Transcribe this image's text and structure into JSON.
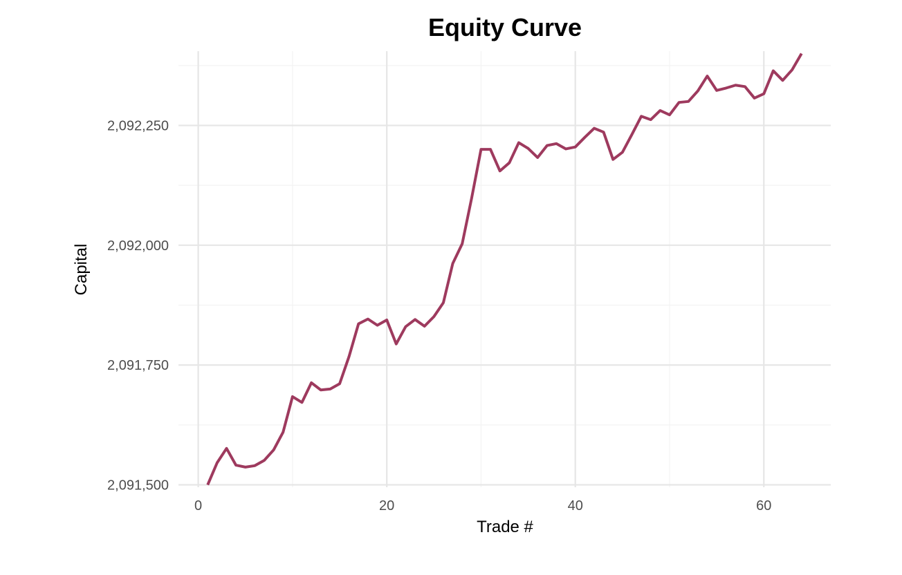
{
  "chart_data": {
    "type": "line",
    "title": "Equity Curve",
    "xlabel": "Trade #",
    "ylabel": "Capital",
    "xlim": [
      -2.1,
      67.1
    ],
    "ylim": [
      2091495,
      2092405
    ],
    "x_ticks": [
      0,
      20,
      40,
      60
    ],
    "x_tick_labels": [
      "0",
      "20",
      "40",
      "60"
    ],
    "x_minor_ticks": [
      10,
      30,
      50
    ],
    "y_ticks": [
      2091500,
      2091750,
      2092000,
      2092250
    ],
    "y_tick_labels": [
      "2,091,500",
      "2,091,750",
      "2,092,000",
      "2,092,250"
    ],
    "y_minor_ticks": [
      2091625,
      2091875,
      2092125,
      2092375
    ],
    "grid": true,
    "legend": "none",
    "series": [
      {
        "color": "#9e3a5e",
        "x": [
          1,
          2,
          3,
          4,
          5,
          6,
          7,
          8,
          9,
          10,
          11,
          12,
          13,
          14,
          15,
          16,
          17,
          18,
          19,
          20,
          21,
          22,
          23,
          24,
          25,
          26,
          27,
          28,
          29,
          30,
          31,
          32,
          33,
          34,
          35,
          36,
          37,
          38,
          39,
          40,
          41,
          42,
          43,
          44,
          45,
          46,
          47,
          48,
          49,
          50,
          51,
          52,
          53,
          54,
          55,
          56,
          57,
          58,
          59,
          60,
          61,
          62,
          63,
          64
        ],
        "values": [
          2091500,
          2091546,
          2091576,
          2091541,
          2091537,
          2091540,
          2091551,
          2091573,
          2091610,
          2091684,
          2091672,
          2091713,
          2091698,
          2091700,
          2091711,
          2091768,
          2091836,
          2091846,
          2091833,
          2091844,
          2091794,
          2091830,
          2091845,
          2091831,
          2091851,
          2091880,
          2091962,
          2092003,
          2092098,
          2092200,
          2092200,
          2092155,
          2092172,
          2092214,
          2092202,
          2092183,
          2092208,
          2092212,
          2092201,
          2092205,
          2092225,
          2092244,
          2092236,
          2092179,
          2092194,
          2092231,
          2092269,
          2092262,
          2092281,
          2092272,
          2092298,
          2092300,
          2092322,
          2092353,
          2092323,
          2092328,
          2092334,
          2092331,
          2092307,
          2092316,
          2092364,
          2092344,
          2092366,
          2092400
        ]
      }
    ]
  }
}
